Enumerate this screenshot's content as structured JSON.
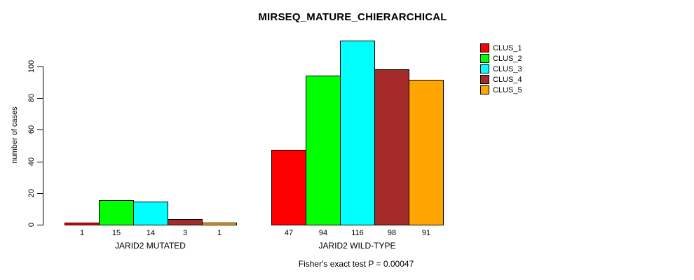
{
  "chart_data": {
    "type": "bar",
    "title": "MIRSEQ_MATURE_CHIERARCHICAL",
    "ylabel": "number of cases",
    "xlabel": "",
    "yticks": [
      0,
      20,
      40,
      60,
      80,
      100
    ],
    "ylim": [
      0,
      116
    ],
    "grid": false,
    "legend_position": "right",
    "value_labels_shown_below_bars": true,
    "series": [
      {
        "name": "CLUS_1",
        "color": "#ff0000"
      },
      {
        "name": "CLUS_2",
        "color": "#00ff00"
      },
      {
        "name": "CLUS_3",
        "color": "#00ffff"
      },
      {
        "name": "CLUS_4",
        "color": "#a52a2a"
      },
      {
        "name": "CLUS_5",
        "color": "#ffa500"
      }
    ],
    "groups": [
      {
        "label": "JARID2 MUTATED",
        "values": [
          1,
          15,
          14,
          3,
          1
        ]
      },
      {
        "label": "JARID2 WILD-TYPE",
        "values": [
          47,
          94,
          116,
          98,
          91
        ]
      }
    ]
  },
  "footnote": "Fisher's exact test P = 0.00047"
}
